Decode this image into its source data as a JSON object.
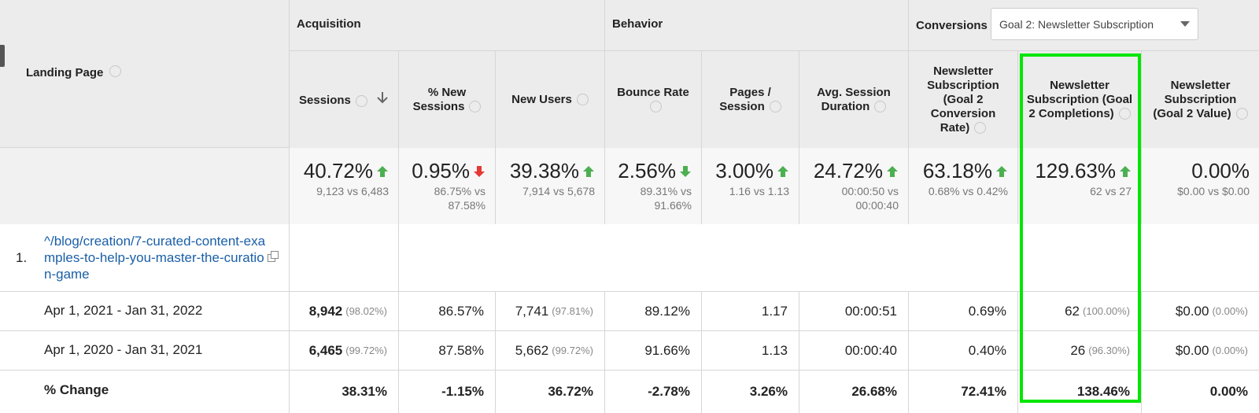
{
  "header": {
    "landing_page": "Landing Page",
    "groups": [
      {
        "label": "Acquisition"
      },
      {
        "label": "Behavior"
      },
      {
        "label": "Conversions"
      }
    ],
    "goal_select": "Goal 2: Newsletter Subscription"
  },
  "columns": [
    "Sessions",
    "% New Sessions",
    "New Users",
    "Bounce Rate",
    "Pages / Session",
    "Avg. Session Duration",
    "Newsletter Subscription (Goal 2 Conversion Rate)",
    "Newsletter Subscription (Goal 2 Completions)",
    "Newsletter Subscription (Goal 2 Value)"
  ],
  "highlight": {
    "column": 7,
    "color": "#00e600"
  },
  "totals": [
    {
      "value": "40.72%",
      "trend": "up",
      "color": "#4caf50",
      "compare": "9,123 vs 6,483"
    },
    {
      "value": "0.95%",
      "trend": "down",
      "color": "#e53935",
      "compare": "86.75% vs 87.58%"
    },
    {
      "value": "39.38%",
      "trend": "up",
      "color": "#4caf50",
      "compare": "7,914 vs 5,678"
    },
    {
      "value": "2.56%",
      "trend": "down",
      "color": "#4caf50",
      "compare": "89.31% vs 91.66%"
    },
    {
      "value": "3.00%",
      "trend": "up",
      "color": "#4caf50",
      "compare": "1.16 vs 1.13"
    },
    {
      "value": "24.72%",
      "trend": "up",
      "color": "#4caf50",
      "compare": "00:00:50 vs 00:00:40"
    },
    {
      "value": "63.18%",
      "trend": "up",
      "color": "#4caf50",
      "compare": "0.68% vs 0.42%"
    },
    {
      "value": "129.63%",
      "trend": "up",
      "color": "#4caf50",
      "compare": "62 vs 27"
    },
    {
      "value": "0.00%",
      "compare": "$0.00 vs $0.00"
    }
  ],
  "rows": [
    {
      "index": "1.",
      "landing_page": "^/blog/creation/7-curated-content-examples-to-help-you-master-the-curation-game"
    }
  ],
  "date_rows": [
    {
      "label": "Apr 1, 2021 - Jan 31, 2022",
      "cells": [
        {
          "value": "8,942",
          "share": "(98.02%)"
        },
        {
          "value": "86.57%"
        },
        {
          "value": "7,741",
          "share": "(97.81%)"
        },
        {
          "value": "89.12%"
        },
        {
          "value": "1.17"
        },
        {
          "value": "00:00:51"
        },
        {
          "value": "0.69%"
        },
        {
          "value": "62",
          "share": "(100.00%)"
        },
        {
          "value": "$0.00",
          "share": "(0.00%)"
        }
      ]
    },
    {
      "label": "Apr 1, 2020 - Jan 31, 2021",
      "cells": [
        {
          "value": "6,465",
          "share": "(99.72%)"
        },
        {
          "value": "87.58%"
        },
        {
          "value": "5,662",
          "share": "(99.72%)"
        },
        {
          "value": "91.66%"
        },
        {
          "value": "1.13"
        },
        {
          "value": "00:00:40"
        },
        {
          "value": "0.40%"
        },
        {
          "value": "26",
          "share": "(96.30%)"
        },
        {
          "value": "$0.00",
          "share": "(0.00%)"
        }
      ]
    }
  ],
  "change_row": {
    "label": "% Change",
    "cells": [
      "38.31%",
      "-1.15%",
      "36.72%",
      "-2.78%",
      "3.26%",
      "26.68%",
      "72.41%",
      "138.46%",
      "0.00%"
    ]
  }
}
